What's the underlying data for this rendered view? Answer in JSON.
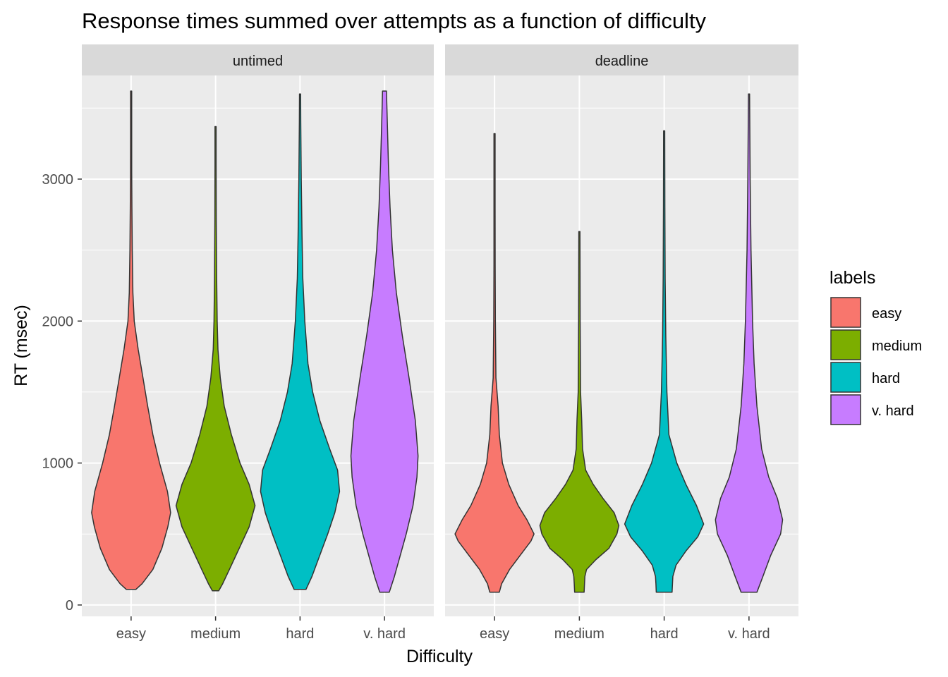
{
  "chart_data": {
    "type": "violin",
    "title": "Response times summed over attempts as a function of difficulty",
    "xlabel": "Difficulty",
    "ylabel": "RT (msec)",
    "ylim": [
      -80,
      3730
    ],
    "yticks": [
      0,
      1000,
      2000,
      3000
    ],
    "categories": [
      "easy",
      "medium",
      "hard",
      "v. hard"
    ],
    "grid": true,
    "legend": {
      "title": "labels",
      "position": "right",
      "entries": [
        {
          "label": "easy",
          "color": "#F8766D"
        },
        {
          "label": "medium",
          "color": "#7CAE00"
        },
        {
          "label": "hard",
          "color": "#00BFC4"
        },
        {
          "label": "v. hard",
          "color": "#C77CFF"
        }
      ]
    },
    "panels": [
      {
        "name": "untimed",
        "violins": [
          {
            "category": "easy",
            "profile": [
              [
                110,
                0.12
              ],
              [
                150,
                0.28
              ],
              [
                250,
                0.55
              ],
              [
                400,
                0.78
              ],
              [
                550,
                0.93
              ],
              [
                650,
                1.0
              ],
              [
                800,
                0.92
              ],
              [
                1000,
                0.72
              ],
              [
                1200,
                0.55
              ],
              [
                1400,
                0.42
              ],
              [
                1600,
                0.3
              ],
              [
                1800,
                0.18
              ],
              [
                2000,
                0.08
              ],
              [
                2200,
                0.045
              ],
              [
                2500,
                0.03
              ],
              [
                2800,
                0.02
              ],
              [
                3050,
                0.015
              ],
              [
                3300,
                0.012
              ],
              [
                3620,
                0.006
              ]
            ]
          },
          {
            "category": "medium",
            "profile": [
              [
                100,
                0.08
              ],
              [
                150,
                0.18
              ],
              [
                250,
                0.35
              ],
              [
                400,
                0.6
              ],
              [
                550,
                0.85
              ],
              [
                700,
                1.0
              ],
              [
                850,
                0.85
              ],
              [
                1000,
                0.62
              ],
              [
                1200,
                0.4
              ],
              [
                1400,
                0.22
              ],
              [
                1600,
                0.12
              ],
              [
                1800,
                0.06
              ],
              [
                2000,
                0.04
              ],
              [
                2300,
                0.028
              ],
              [
                2700,
                0.018
              ],
              [
                3100,
                0.012
              ],
              [
                3370,
                0.005
              ]
            ]
          },
          {
            "category": "hard",
            "profile": [
              [
                110,
                0.15
              ],
              [
                200,
                0.3
              ],
              [
                350,
                0.5
              ],
              [
                500,
                0.7
              ],
              [
                650,
                0.88
              ],
              [
                800,
                1.0
              ],
              [
                950,
                0.95
              ],
              [
                1100,
                0.75
              ],
              [
                1300,
                0.5
              ],
              [
                1500,
                0.32
              ],
              [
                1700,
                0.2
              ],
              [
                2000,
                0.12
              ],
              [
                2300,
                0.07
              ],
              [
                2600,
                0.05
              ],
              [
                3000,
                0.03
              ],
              [
                3400,
                0.018
              ],
              [
                3600,
                0.008
              ]
            ]
          },
          {
            "category": "v. hard",
            "profile": [
              [
                90,
                0.12
              ],
              [
                200,
                0.25
              ],
              [
                350,
                0.4
              ],
              [
                500,
                0.55
              ],
              [
                700,
                0.72
              ],
              [
                900,
                0.82
              ],
              [
                1050,
                0.85
              ],
              [
                1300,
                0.78
              ],
              [
                1600,
                0.62
              ],
              [
                1900,
                0.45
              ],
              [
                2200,
                0.3
              ],
              [
                2500,
                0.2
              ],
              [
                2800,
                0.14
              ],
              [
                3100,
                0.1
              ],
              [
                3400,
                0.07
              ],
              [
                3620,
                0.05
              ]
            ]
          }
        ]
      },
      {
        "name": "deadline",
        "violins": [
          {
            "category": "easy",
            "profile": [
              [
                90,
                0.12
              ],
              [
                150,
                0.18
              ],
              [
                250,
                0.38
              ],
              [
                350,
                0.65
              ],
              [
                450,
                0.92
              ],
              [
                500,
                1.0
              ],
              [
                600,
                0.82
              ],
              [
                700,
                0.6
              ],
              [
                850,
                0.36
              ],
              [
                1000,
                0.2
              ],
              [
                1200,
                0.12
              ],
              [
                1400,
                0.09
              ],
              [
                1600,
                0.035
              ],
              [
                2000,
                0.02
              ],
              [
                2400,
                0.015
              ],
              [
                2800,
                0.01
              ],
              [
                3320,
                0.005
              ]
            ]
          },
          {
            "category": "medium",
            "profile": [
              [
                90,
                0.12
              ],
              [
                150,
                0.13
              ],
              [
                200,
                0.14
              ],
              [
                250,
                0.18
              ],
              [
                320,
                0.42
              ],
              [
                400,
                0.75
              ],
              [
                500,
                0.95
              ],
              [
                560,
                1.0
              ],
              [
                650,
                0.88
              ],
              [
                750,
                0.6
              ],
              [
                850,
                0.35
              ],
              [
                950,
                0.16
              ],
              [
                1100,
                0.08
              ],
              [
                1300,
                0.06
              ],
              [
                1500,
                0.03
              ],
              [
                2000,
                0.02
              ],
              [
                2630,
                0.008
              ]
            ]
          },
          {
            "category": "hard",
            "profile": [
              [
                90,
                0.2
              ],
              [
                150,
                0.21
              ],
              [
                200,
                0.22
              ],
              [
                280,
                0.3
              ],
              [
                380,
                0.55
              ],
              [
                480,
                0.85
              ],
              [
                570,
                1.0
              ],
              [
                700,
                0.82
              ],
              [
                850,
                0.55
              ],
              [
                1000,
                0.32
              ],
              [
                1200,
                0.12
              ],
              [
                1500,
                0.07
              ],
              [
                1900,
                0.04
              ],
              [
                2300,
                0.025
              ],
              [
                2800,
                0.018
              ],
              [
                3340,
                0.006
              ]
            ]
          },
          {
            "category": "v. hard",
            "profile": [
              [
                90,
                0.2
              ],
              [
                200,
                0.35
              ],
              [
                350,
                0.55
              ],
              [
                500,
                0.8
              ],
              [
                600,
                0.85
              ],
              [
                750,
                0.72
              ],
              [
                900,
                0.5
              ],
              [
                1100,
                0.32
              ],
              [
                1400,
                0.2
              ],
              [
                1700,
                0.13
              ],
              [
                2000,
                0.09
              ],
              [
                2500,
                0.05
              ],
              [
                3000,
                0.03
              ],
              [
                3600,
                0.012
              ]
            ]
          }
        ]
      }
    ]
  }
}
